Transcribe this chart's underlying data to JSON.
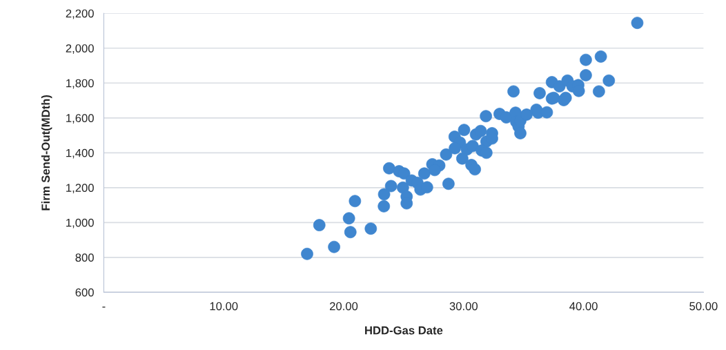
{
  "chart_data": {
    "type": "scatter",
    "xlabel": "HDD-Gas Date",
    "ylabel": "Firm Send-Out(MDth)",
    "xlim": [
      0,
      50
    ],
    "ylim": [
      600,
      2200
    ],
    "xticks": [
      {
        "value": 0,
        "label": "-"
      },
      {
        "value": 10,
        "label": "10.00"
      },
      {
        "value": 20,
        "label": "20.00"
      },
      {
        "value": 30,
        "label": "30.00"
      },
      {
        "value": 40,
        "label": "40.00"
      },
      {
        "value": 50,
        "label": "50.00"
      }
    ],
    "yticks": [
      {
        "value": 600,
        "label": "600"
      },
      {
        "value": 800,
        "label": "800"
      },
      {
        "value": 1000,
        "label": "1,000"
      },
      {
        "value": 1200,
        "label": "1,200"
      },
      {
        "value": 1400,
        "label": "1,400"
      },
      {
        "value": 1600,
        "label": "1,600"
      },
      {
        "value": 1800,
        "label": "1,800"
      },
      {
        "value": 2000,
        "label": "2,000"
      },
      {
        "value": 2200,
        "label": "2,200"
      }
    ],
    "grid": "y",
    "marker": "circle",
    "series": [
      {
        "color": "#3f86cf",
        "x": [
          16.95,
          19.2,
          17.97,
          20.56,
          20.44,
          20.94,
          22.26,
          23.35,
          23.37,
          23.79,
          23.95,
          24.62,
          25.04,
          24.94,
          25.25,
          25.25,
          25.67,
          26.15,
          26.4,
          26.72,
          26.95,
          27.39,
          27.97,
          27.59,
          28.74,
          28.54,
          29.25,
          30.04,
          29.69,
          29.27,
          30.27,
          29.89,
          30.75,
          30.65,
          30.94,
          31.03,
          31.42,
          31.9,
          32.37,
          32.37,
          31.51,
          31.9,
          31.86,
          33.0,
          33.56,
          34.33,
          34.39,
          34.58,
          34.73,
          34.73,
          34.16,
          35.25,
          36.07,
          36.21,
          36.94,
          36.34,
          37.36,
          37.36,
          37.51,
          37.99,
          38.35,
          38.51,
          38.66,
          39.08,
          39.56,
          39.6,
          41.28,
          42.11,
          40.19,
          40.19,
          41.44,
          44.48
        ],
        "values": [
          820,
          860,
          985,
          945,
          1024,
          1123,
          965,
          1093,
          1162,
          1311,
          1209,
          1294,
          1281,
          1200,
          1149,
          1110,
          1241,
          1228,
          1189,
          1281,
          1202,
          1334,
          1327,
          1301,
          1222,
          1390,
          1492,
          1531,
          1459,
          1426,
          1419,
          1367,
          1439,
          1330,
          1305,
          1505,
          1525,
          1465,
          1512,
          1482,
          1413,
          1400,
          1610,
          1623,
          1603,
          1630,
          1577,
          1551,
          1512,
          1584,
          1752,
          1619,
          1647,
          1630,
          1632,
          1742,
          1805,
          1711,
          1715,
          1781,
          1702,
          1715,
          1814,
          1781,
          1788,
          1755,
          1752,
          1814,
          1845,
          1933,
          1952,
          2145
        ]
      }
    ]
  }
}
